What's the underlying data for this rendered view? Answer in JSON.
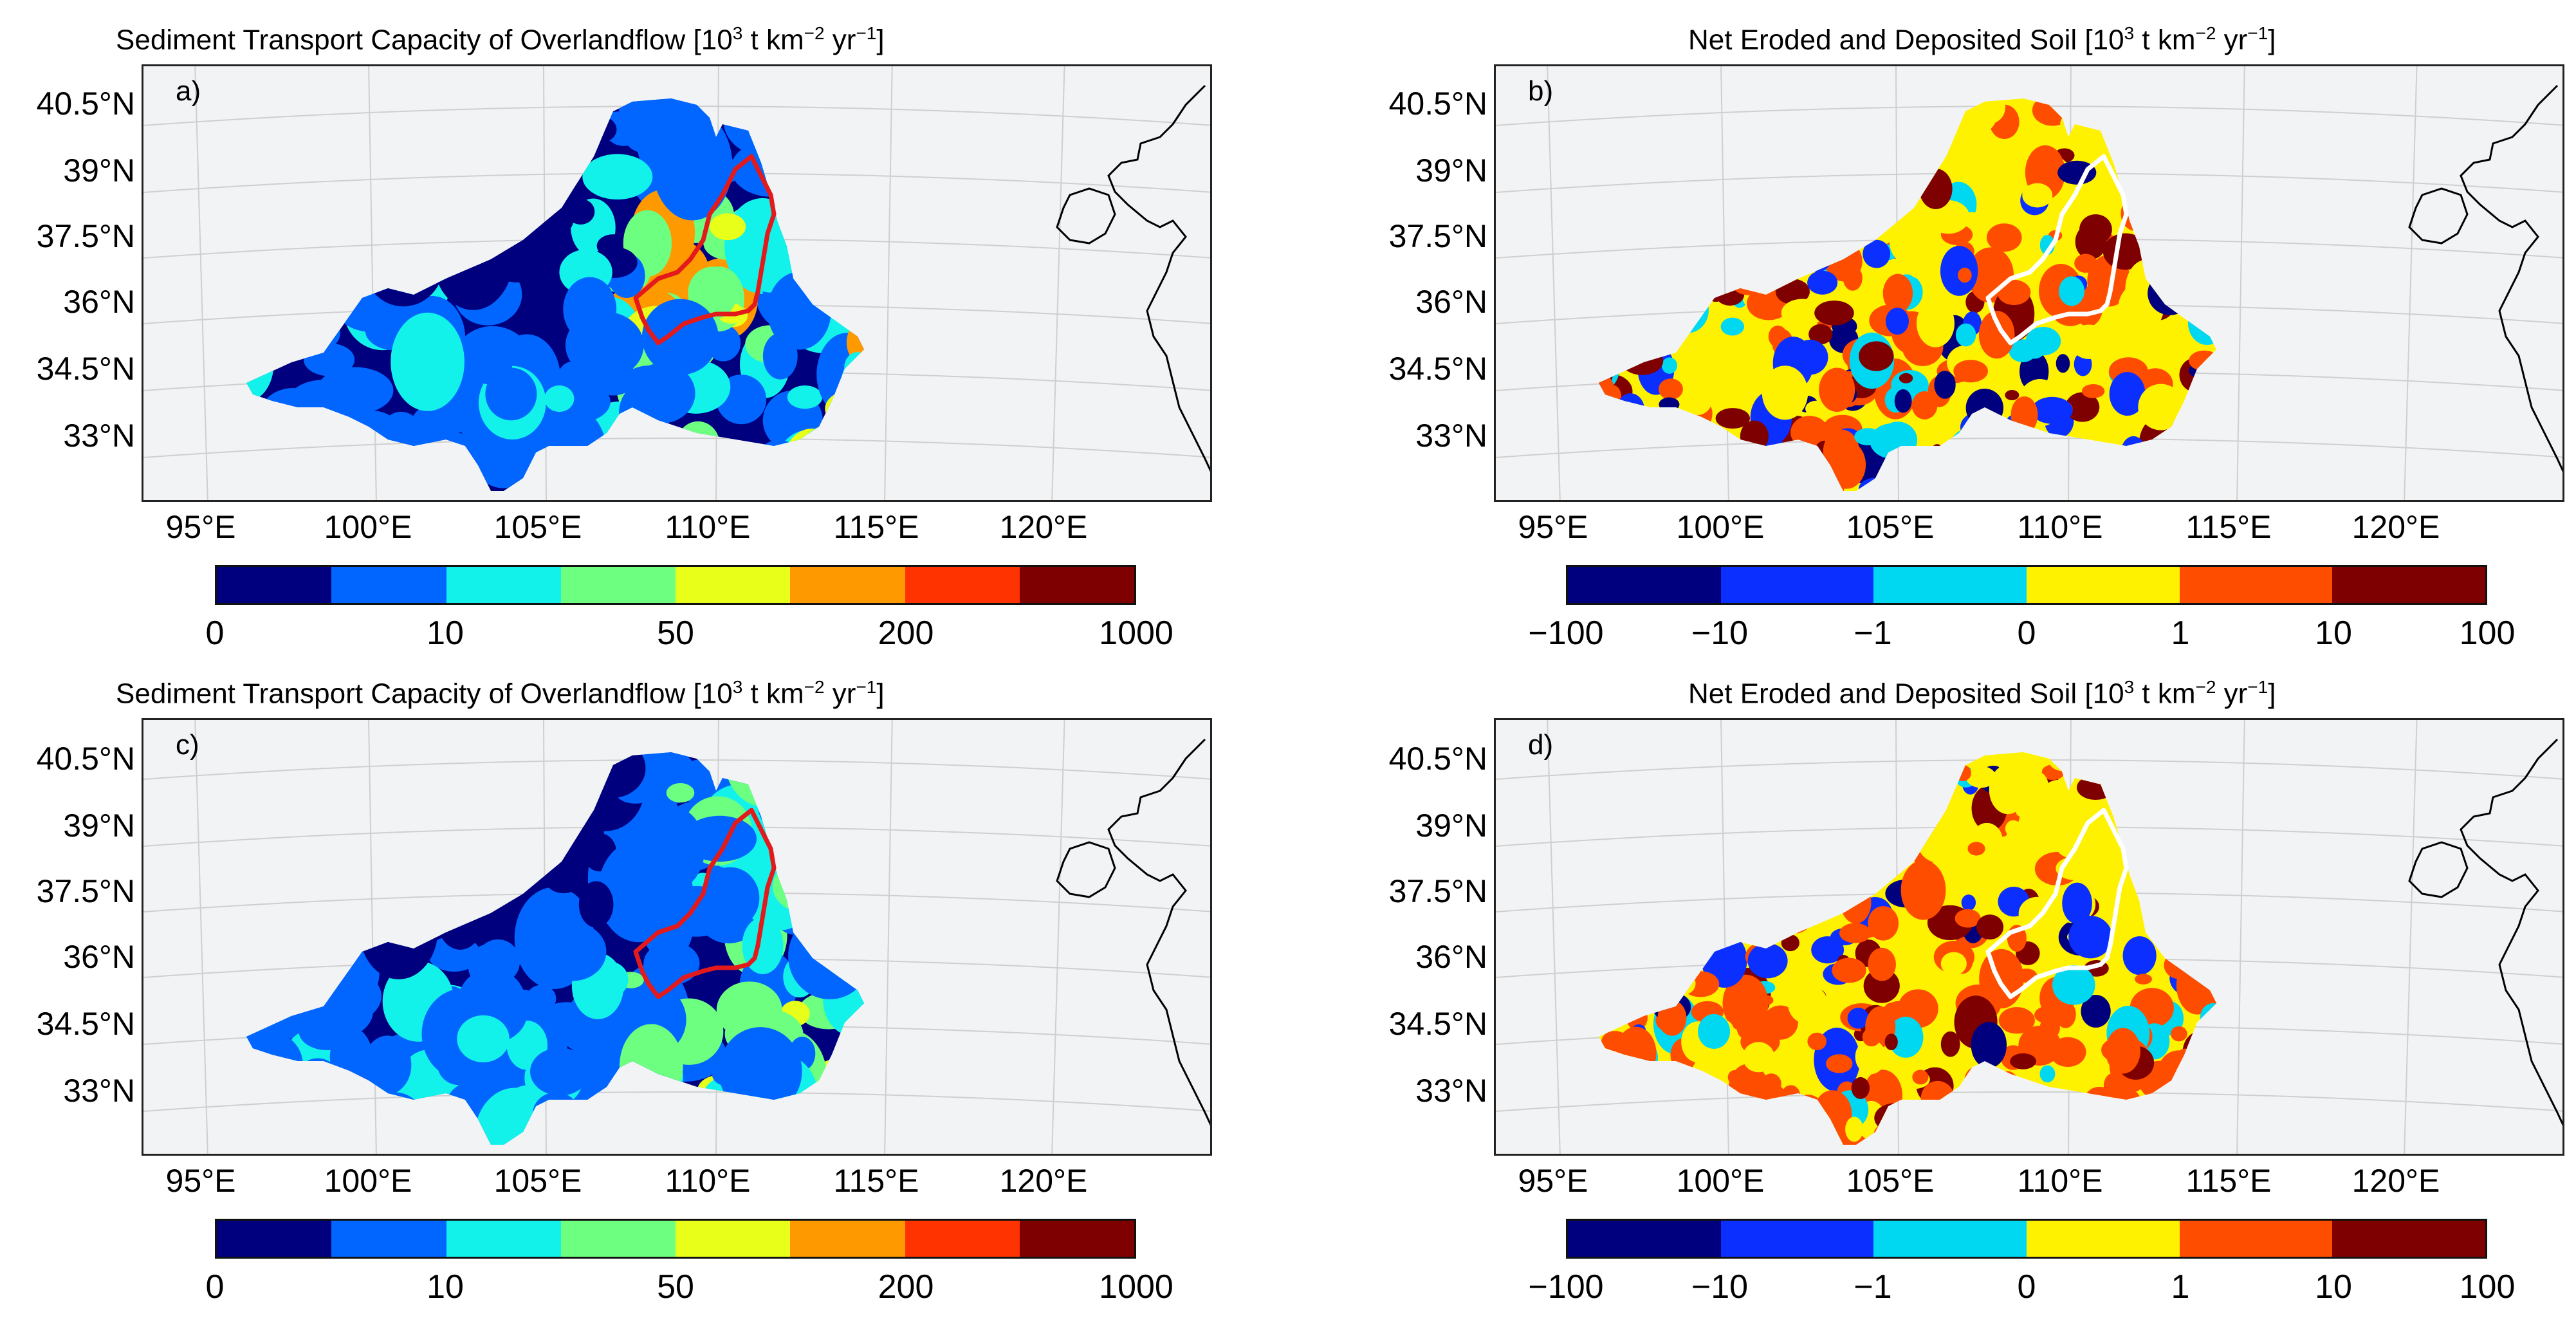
{
  "panels": [
    {
      "letter": "a)",
      "title_main": "Sediment Transport Capacity of Overlandflow [10",
      "title_exp1": "3",
      "title_mid": " t km",
      "title_exp2": "−2",
      "title_mid2": " yr",
      "title_exp3": "−1",
      "title_end": "]",
      "boundary_color": "#e31a1c",
      "scheme": "capacity"
    },
    {
      "letter": "b)",
      "title_main": "Net Eroded and Deposited Soil [10",
      "title_exp1": "3",
      "title_mid": " t km",
      "title_exp2": "−2",
      "title_mid2": " yr",
      "title_exp3": "−1",
      "title_end": "]",
      "boundary_color": "#ffffff",
      "scheme": "net"
    },
    {
      "letter": "c)",
      "title_main": "Sediment Transport Capacity of Overlandflow [10",
      "title_exp1": "3",
      "title_mid": " t km",
      "title_exp2": "−2",
      "title_mid2": " yr",
      "title_exp3": "−1",
      "title_end": "]",
      "boundary_color": "#e31a1c",
      "scheme": "capacity"
    },
    {
      "letter": "d)",
      "title_main": "Net Eroded and Deposited Soil [10",
      "title_exp1": "3",
      "title_mid": " t km",
      "title_exp2": "−2",
      "title_mid2": " yr",
      "title_exp3": "−1",
      "title_end": "]",
      "boundary_color": "#ffffff",
      "scheme": "net"
    }
  ],
  "lat_labels": [
    "40.5°N",
    "39°N",
    "37.5°N",
    "36°N",
    "34.5°N",
    "33°N"
  ],
  "lon_labels": [
    "95°E",
    "100°E",
    "105°E",
    "110°E",
    "115°E",
    "120°E"
  ],
  "colorbars": {
    "capacity": {
      "colors": [
        "#00007f",
        "#0066ff",
        "#12f2ea",
        "#6dff80",
        "#e8ff1a",
        "#ff9900",
        "#ff3300",
        "#7f0000"
      ],
      "ticks": [
        "0",
        "10",
        "50",
        "200",
        "1000"
      ]
    },
    "net": {
      "colors": [
        "#00007f",
        "#0b2fff",
        "#00d8f2",
        "#fff200",
        "#ff4d00",
        "#7f0000"
      ],
      "ticks": [
        "−100",
        "−10",
        "−1",
        "0",
        "1",
        "10",
        "100"
      ]
    }
  },
  "land_color": "#f2f3f5",
  "grid_color": "#cfcfcf",
  "coast_color": "#000000"
}
